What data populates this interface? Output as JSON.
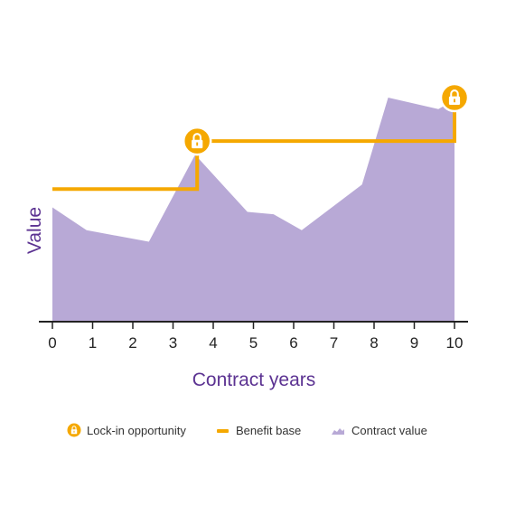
{
  "chart_data": {
    "type": "area",
    "xlabel": "Contract years",
    "ylabel": "Value",
    "x_ticks": [
      0,
      1,
      2,
      3,
      4,
      5,
      6,
      7,
      8,
      9,
      10
    ],
    "xlim": [
      0,
      10
    ],
    "ylim": [
      0,
      100
    ],
    "grid": false,
    "legend_position": "bottom",
    "series": [
      {
        "name": "Contract value",
        "kind": "area",
        "color": "#b8a9d6",
        "points": [
          {
            "x": 0,
            "y": 50
          },
          {
            "x": 0.85,
            "y": 40
          },
          {
            "x": 2.4,
            "y": 35
          },
          {
            "x": 3.55,
            "y": 73
          },
          {
            "x": 4.85,
            "y": 48
          },
          {
            "x": 5.5,
            "y": 47
          },
          {
            "x": 6.2,
            "y": 40
          },
          {
            "x": 7.7,
            "y": 60
          },
          {
            "x": 8.35,
            "y": 98
          },
          {
            "x": 9.6,
            "y": 93
          },
          {
            "x": 10,
            "y": 97
          },
          {
            "x": 10,
            "y": 0
          }
        ]
      },
      {
        "name": "Benefit base",
        "kind": "step",
        "color": "#f5a800",
        "points": [
          {
            "x": 0,
            "y": 58
          },
          {
            "x": 3.6,
            "y": 58
          },
          {
            "x": 3.6,
            "y": 79
          },
          {
            "x": 10,
            "y": 79
          },
          {
            "x": 10,
            "y": 98
          }
        ]
      }
    ],
    "lock_in_points": [
      {
        "x": 3.6,
        "y": 79
      },
      {
        "x": 10,
        "y": 98
      }
    ],
    "legend": [
      {
        "label": "Lock-in opportunity",
        "icon": "lock-icon",
        "color": "#f5a800"
      },
      {
        "label": "Benefit base",
        "icon": "line-swatch",
        "color": "#f5a800"
      },
      {
        "label": "Contract value",
        "icon": "area-swatch",
        "color": "#b8a9d6"
      }
    ],
    "colors": {
      "axis": "#222222",
      "title": "#5c3392",
      "lock": "#f5a800"
    }
  }
}
